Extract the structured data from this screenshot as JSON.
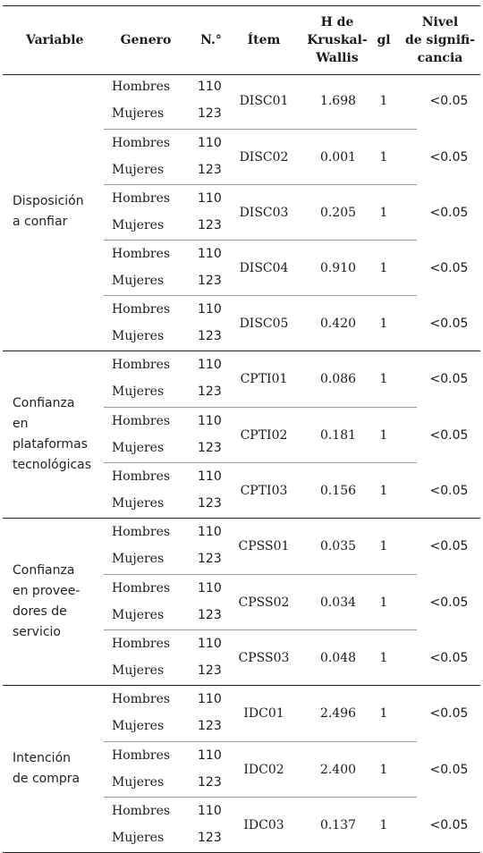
{
  "headers": {
    "variable": "Variable",
    "genero": "Genero",
    "n": "N.°",
    "item": "Ítem",
    "h_lines": [
      "H de",
      "Kruskal-",
      "Wallis"
    ],
    "gl": "gl",
    "nivel_lines": [
      "Nivel",
      "de signifi-",
      "cancia"
    ]
  },
  "groups": [
    {
      "variable_lines": [
        "Disposición",
        "a confiar"
      ],
      "items": [
        {
          "item": "DISC01",
          "h": "1.698",
          "gl": "1",
          "sig": "<0.05",
          "rows": [
            {
              "genero": "Hombres",
              "n": "110"
            },
            {
              "genero": "Mujeres",
              "n": "123"
            }
          ]
        },
        {
          "item": "DISC02",
          "h": "0.001",
          "gl": "1",
          "sig": "<0.05",
          "rows": [
            {
              "genero": "Hombres",
              "n": "110"
            },
            {
              "genero": "Mujeres",
              "n": "123"
            }
          ]
        },
        {
          "item": "DISC03",
          "h": "0.205",
          "gl": "1",
          "sig": "<0.05",
          "rows": [
            {
              "genero": "Hombres",
              "n": "110"
            },
            {
              "genero": "Mujeres",
              "n": "123"
            }
          ]
        },
        {
          "item": "DISC04",
          "h": "0.910",
          "gl": "1",
          "sig": "<0.05",
          "rows": [
            {
              "genero": "Hombres",
              "n": "110"
            },
            {
              "genero": "Mujeres",
              "n": "123"
            }
          ]
        },
        {
          "item": "DISC05",
          "h": "0.420",
          "gl": "1",
          "sig": "<0.05",
          "rows": [
            {
              "genero": "Hombres",
              "n": "110"
            },
            {
              "genero": "Mujeres",
              "n": "123"
            }
          ]
        }
      ]
    },
    {
      "variable_lines": [
        "Confianza",
        "en",
        "plataformas",
        "tecnológicas"
      ],
      "items": [
        {
          "item": "CPTI01",
          "h": "0.086",
          "gl": "1",
          "sig": "<0.05",
          "rows": [
            {
              "genero": "Hombres",
              "n": "110"
            },
            {
              "genero": "Mujeres",
              "n": "123"
            }
          ]
        },
        {
          "item": "CPTI02",
          "h": "0.181",
          "gl": "1",
          "sig": "<0.05",
          "rows": [
            {
              "genero": "Hombres",
              "n": "110"
            },
            {
              "genero": "Mujeres",
              "n": "123"
            }
          ]
        },
        {
          "item": "CPTI03",
          "h": "0.156",
          "gl": "1",
          "sig": "<0.05",
          "rows": [
            {
              "genero": "Hombres",
              "n": "110"
            },
            {
              "genero": "Mujeres",
              "n": "123"
            }
          ]
        }
      ]
    },
    {
      "variable_lines": [
        "Confianza",
        "en provee-",
        "dores de",
        "servicio"
      ],
      "items": [
        {
          "item": "CPSS01",
          "h": "0.035",
          "gl": "1",
          "sig": "<0.05",
          "rows": [
            {
              "genero": "Hombres",
              "n": "110"
            },
            {
              "genero": "Mujeres",
              "n": "123"
            }
          ]
        },
        {
          "item": "CPSS02",
          "h": "0.034",
          "gl": "1",
          "sig": "<0.05",
          "rows": [
            {
              "genero": "Hombres",
              "n": "110"
            },
            {
              "genero": "Mujeres",
              "n": "123"
            }
          ]
        },
        {
          "item": "CPSS03",
          "h": "0.048",
          "gl": "1",
          "sig": "<0.05",
          "rows": [
            {
              "genero": "Hombres",
              "n": "110"
            },
            {
              "genero": "Mujeres",
              "n": "123"
            }
          ]
        }
      ]
    },
    {
      "variable_lines": [
        "Intención",
        "de compra"
      ],
      "items": [
        {
          "item": "IDC01",
          "h": "2.496",
          "gl": "1",
          "sig": "<0.05",
          "rows": [
            {
              "genero": "Hombres",
              "n": "110"
            },
            {
              "genero": "Mujeres",
              "n": "123"
            }
          ]
        },
        {
          "item": "IDC02",
          "h": "2.400",
          "gl": "1",
          "sig": "<0.05",
          "rows": [
            {
              "genero": "Hombres",
              "n": "110"
            },
            {
              "genero": "Mujeres",
              "n": "123"
            }
          ]
        },
        {
          "item": "IDC03",
          "h": "0.137",
          "gl": "1",
          "sig": "<0.05",
          "rows": [
            {
              "genero": "Hombres",
              "n": "110"
            },
            {
              "genero": "Mujeres",
              "n": "123"
            }
          ]
        }
      ]
    }
  ]
}
